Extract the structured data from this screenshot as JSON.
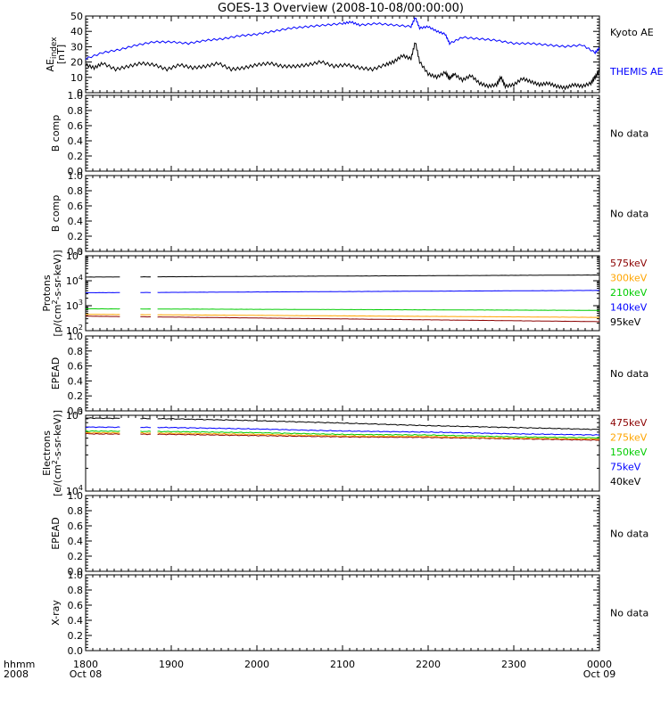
{
  "title": "GOES-13 Overview (2008-10-08/00:00:00)",
  "time_axis": {
    "row1_label": "hhmm",
    "row2_label": "2008",
    "ticks": [
      "1800",
      "1900",
      "2000",
      "2100",
      "2200",
      "2300",
      "0000"
    ],
    "start_date": "Oct 08",
    "end_date": "Oct 09"
  },
  "chart_data": [
    {
      "type": "line",
      "panel": "ae",
      "ylabel_main": "AE",
      "ylabel_sub": "index",
      "ylabel_unit": "[nT]",
      "ylim": [
        0,
        50
      ],
      "yticks": [
        "0",
        "10",
        "20",
        "30",
        "40",
        "50"
      ],
      "x_hours": [
        18,
        24
      ],
      "series": [
        {
          "name": "Kyoto AE",
          "color": "#000000",
          "x": [
            18.0,
            18.1,
            18.2,
            18.35,
            18.5,
            18.65,
            18.8,
            18.95,
            19.1,
            19.25,
            19.4,
            19.55,
            19.7,
            19.85,
            20.0,
            20.15,
            20.3,
            20.45,
            20.6,
            20.75,
            20.9,
            21.05,
            21.2,
            21.35,
            21.5,
            21.6,
            21.7,
            21.8,
            21.85,
            21.9,
            22.0,
            22.1,
            22.2,
            22.25,
            22.3,
            22.4,
            22.5,
            22.6,
            22.7,
            22.8,
            22.85,
            22.9,
            23.0,
            23.1,
            23.2,
            23.3,
            23.4,
            23.5,
            23.6,
            23.7,
            23.8,
            23.9,
            23.95,
            24.0
          ],
          "y": [
            18,
            16,
            19,
            15,
            17,
            19,
            18,
            15,
            18,
            16,
            17,
            19,
            15,
            16,
            18,
            19,
            17,
            17,
            18,
            20,
            17,
            18,
            16,
            15,
            18,
            20,
            24,
            22,
            33,
            20,
            12,
            10,
            13,
            9,
            12,
            8,
            11,
            6,
            4,
            5,
            10,
            4,
            5,
            9,
            7,
            5,
            6,
            4,
            3,
            5,
            4,
            6,
            10,
            14
          ]
        },
        {
          "name": "THEMIS AE",
          "color": "#0000ff",
          "x": [
            18.0,
            18.2,
            18.4,
            18.6,
            18.8,
            19.0,
            19.2,
            19.4,
            19.6,
            19.8,
            20.0,
            20.2,
            20.4,
            20.6,
            20.8,
            21.0,
            21.1,
            21.2,
            21.4,
            21.6,
            21.8,
            21.85,
            21.9,
            22.0,
            22.1,
            22.2,
            22.25,
            22.4,
            22.6,
            22.8,
            23.0,
            23.2,
            23.4,
            23.6,
            23.8,
            23.95,
            24.0
          ],
          "y": [
            22,
            26,
            28,
            31,
            33,
            33,
            32,
            34,
            35,
            37,
            38,
            40,
            42,
            43,
            44,
            45,
            46,
            44,
            45,
            44,
            43,
            49,
            42,
            43,
            40,
            38,
            32,
            36,
            35,
            34,
            32,
            32,
            31,
            30,
            31,
            26,
            29
          ]
        }
      ]
    },
    {
      "type": "line",
      "panel": "bcomp1",
      "ylabel": "B comp",
      "ylim": [
        0,
        1
      ],
      "yticks": [
        "0.0",
        "0.2",
        "0.4",
        "0.6",
        "0.8",
        "1.0"
      ],
      "note": "No data"
    },
    {
      "type": "line",
      "panel": "bcomp2",
      "ylabel": "B comp",
      "ylim": [
        0,
        1
      ],
      "yticks": [
        "0.0",
        "0.2",
        "0.4",
        "0.6",
        "0.8",
        "1.0"
      ],
      "note": "No data"
    },
    {
      "type": "line",
      "panel": "protons",
      "ylabel_main": "Protons",
      "ylabel_unit_a": "[p/(cm",
      "ylabel_unit_exp": "2",
      "ylabel_unit_b": "-s-sr-keV)]",
      "log_scale": true,
      "ylim_exp": [
        2,
        5
      ],
      "yticks_exp": [
        "2",
        "3",
        "4",
        "5"
      ],
      "gaps_hours": [
        [
          18.42,
          18.62
        ],
        [
          18.78,
          18.82
        ]
      ],
      "series": [
        {
          "name": "575keV",
          "color": "#8b0000",
          "x": [
            18,
            24
          ],
          "y": [
            380,
            230
          ]
        },
        {
          "name": "300keV",
          "color": "#ffa500",
          "x": [
            18,
            24
          ],
          "y": [
            450,
            340
          ]
        },
        {
          "name": "210keV",
          "color": "#00cc00",
          "x": [
            18,
            24
          ],
          "y": [
            750,
            650
          ]
        },
        {
          "name": "140keV",
          "color": "#0000ff",
          "x": [
            18,
            24
          ],
          "y": [
            3300,
            4100
          ]
        },
        {
          "name": "95keV",
          "color": "#000000",
          "x": [
            18,
            24
          ],
          "y": [
            14000,
            17000
          ]
        }
      ]
    },
    {
      "type": "line",
      "panel": "epead1",
      "ylabel": "EPEAD",
      "ylim": [
        0,
        1
      ],
      "yticks": [
        "0.0",
        "0.2",
        "0.4",
        "0.6",
        "0.8",
        "1.0"
      ],
      "note": "No data"
    },
    {
      "type": "line",
      "panel": "electrons",
      "ylabel_main": "Electrons",
      "ylabel_unit_a": "[e/(cm",
      "ylabel_unit_exp": "2",
      "ylabel_unit_b": "-s-sr-keV)]",
      "log_scale": true,
      "ylim_exp": [
        4,
        5
      ],
      "yticks_exp": [
        "4",
        "5"
      ],
      "gaps_hours": [
        [
          18.42,
          18.62
        ],
        [
          18.78,
          18.82
        ]
      ],
      "series": [
        {
          "name": "475keV",
          "color": "#8b0000",
          "x": [
            18,
            19,
            20,
            21,
            22,
            23,
            24
          ],
          "y": [
            57000,
            56000,
            54000,
            52000,
            51000,
            49000,
            47000
          ]
        },
        {
          "name": "275keV",
          "color": "#ffa500",
          "x": [
            18,
            19,
            20,
            21,
            22,
            23,
            24
          ],
          "y": [
            59000,
            58000,
            56000,
            53500,
            52500,
            50000,
            48500
          ]
        },
        {
          "name": "150keV",
          "color": "#00cc00",
          "x": [
            18,
            19,
            20,
            21,
            22,
            23,
            24
          ],
          "y": [
            62000,
            61000,
            59000,
            56000,
            55000,
            52000,
            50500
          ]
        },
        {
          "name": "75keV",
          "color": "#0000ff",
          "x": [
            18,
            19,
            20,
            21,
            22,
            23,
            24
          ],
          "y": [
            70000,
            69000,
            66000,
            62000,
            60000,
            57000,
            55000
          ]
        },
        {
          "name": "40keV",
          "color": "#000000",
          "x": [
            18,
            19,
            20,
            21,
            22,
            23,
            24
          ],
          "y": [
            92000,
            90000,
            85000,
            79000,
            73000,
            69000,
            65000
          ]
        }
      ]
    },
    {
      "type": "line",
      "panel": "epead2",
      "ylabel": "EPEAD",
      "ylim": [
        0,
        1
      ],
      "yticks": [
        "0.0",
        "0.2",
        "0.4",
        "0.6",
        "0.8",
        "1.0"
      ],
      "note": "No data"
    },
    {
      "type": "line",
      "panel": "xray",
      "ylabel": "X-ray",
      "ylim": [
        0,
        1
      ],
      "yticks": [
        "0.0",
        "0.2",
        "0.4",
        "0.6",
        "0.8",
        "1.0"
      ],
      "note": "No data"
    }
  ]
}
